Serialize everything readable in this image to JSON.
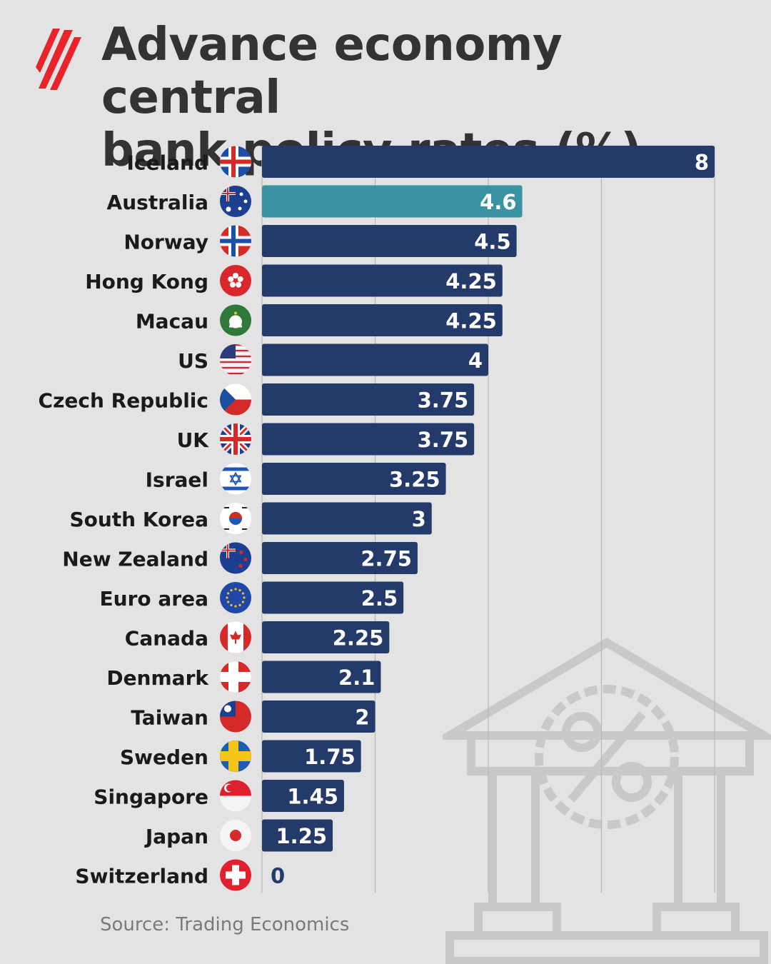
{
  "title_lines": [
    "Advance economy central",
    "bank policy rates (%)"
  ],
  "source": "Source: Trading Economics",
  "colors": {
    "background": "#e3e3e3",
    "bar": "#243a6b",
    "highlight": "#3a93a0",
    "text": "#1a1a1a",
    "value_text": "#ffffff",
    "grid": "#b8b8b8",
    "logo": "#e8232a"
  },
  "icons": {
    "logo": "sbs-wave-logo-icon",
    "watermark": "bank-building-percent-icon"
  },
  "chart_data": {
    "type": "bar",
    "orientation": "horizontal",
    "title": "Advance economy central bank policy rates (%)",
    "xlim": [
      0,
      8
    ],
    "grid": true,
    "highlight": "Australia",
    "categories": [
      "Iceland",
      "Australia",
      "Norway",
      "Hong Kong",
      "Macau",
      "US",
      "Czech Republic",
      "UK",
      "Israel",
      "South Korea",
      "New Zealand",
      "Euro area",
      "Canada",
      "Denmark",
      "Taiwan",
      "Sweden",
      "Singapore",
      "Japan",
      "Switzerland"
    ],
    "values": [
      8,
      4.6,
      4.5,
      4.25,
      4.25,
      4,
      3.75,
      3.75,
      3.25,
      3,
      2.75,
      2.5,
      2.25,
      2.1,
      2,
      1.75,
      1.45,
      1.25,
      0
    ],
    "value_labels": [
      "8",
      "4.6",
      "4.5",
      "4.25",
      "4.25",
      "4",
      "3.75",
      "3.75",
      "3.25",
      "3",
      "2.75",
      "2.5",
      "2.25",
      "2.1",
      "2",
      "1.75",
      "1.45",
      "1.25",
      "0"
    ],
    "flag_icons": [
      "iceland-flag-icon",
      "australia-flag-icon",
      "norway-flag-icon",
      "hong-kong-flag-icon",
      "macau-flag-icon",
      "us-flag-icon",
      "czech-republic-flag-icon",
      "uk-flag-icon",
      "israel-flag-icon",
      "south-korea-flag-icon",
      "new-zealand-flag-icon",
      "euro-area-flag-icon",
      "canada-flag-icon",
      "denmark-flag-icon",
      "taiwan-flag-icon",
      "sweden-flag-icon",
      "singapore-flag-icon",
      "japan-flag-icon",
      "switzerland-flag-icon"
    ]
  }
}
